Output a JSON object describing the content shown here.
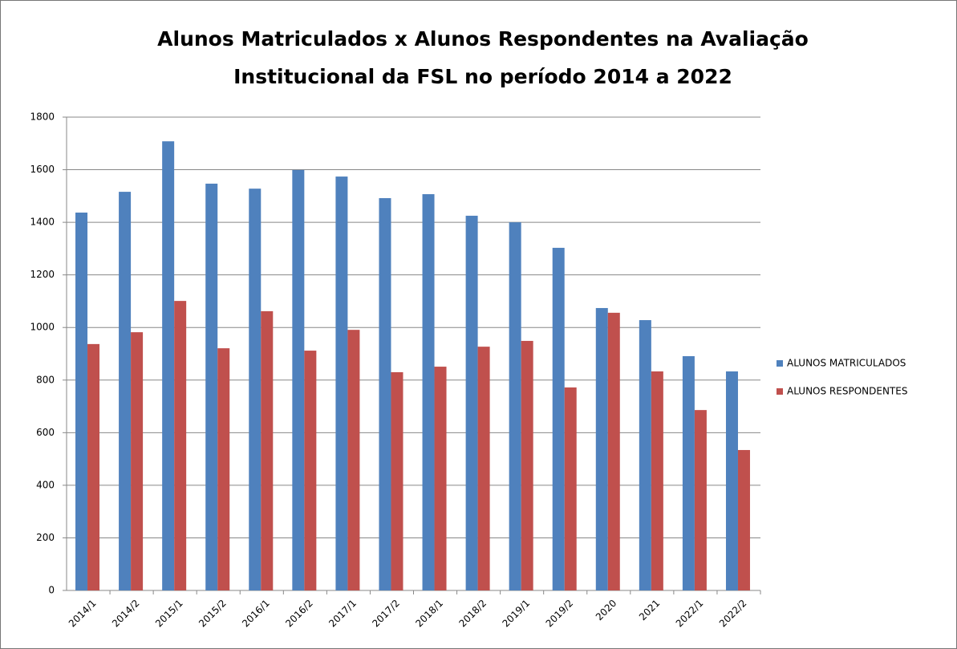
{
  "chart_data": {
    "type": "bar",
    "title": [
      "Alunos Matriculados x Alunos Respondentes na Avaliação",
      "Institucional da FSL no período 2014 a 2022"
    ],
    "categories": [
      "2014/1",
      "2014/2",
      "2015/1",
      "2015/2",
      "2016/1",
      "2016/2",
      "2017/1",
      "2017/2",
      "2018/1",
      "2018/2",
      "2019/1",
      "2019/2",
      "2020",
      "2021",
      "2022/1",
      "2022/2"
    ],
    "series": [
      {
        "name": "ALUNOS MATRICULADOS",
        "color": "#4f81bd",
        "values": [
          1437,
          1516,
          1708,
          1547,
          1528,
          1599,
          1574,
          1492,
          1507,
          1425,
          1400,
          1303,
          1074,
          1028,
          891,
          833
        ]
      },
      {
        "name": "ALUNOS RESPONDENTES",
        "color": "#c0504d",
        "values": [
          937,
          982,
          1101,
          921,
          1062,
          912,
          991,
          830,
          851,
          927,
          949,
          772,
          1056,
          833,
          686,
          534
        ]
      }
    ],
    "ylim": [
      0,
      1800
    ],
    "yticks": [
      0,
      200,
      400,
      600,
      800,
      1000,
      1200,
      1400,
      1600,
      1800
    ],
    "grid": true,
    "legend": "right"
  }
}
